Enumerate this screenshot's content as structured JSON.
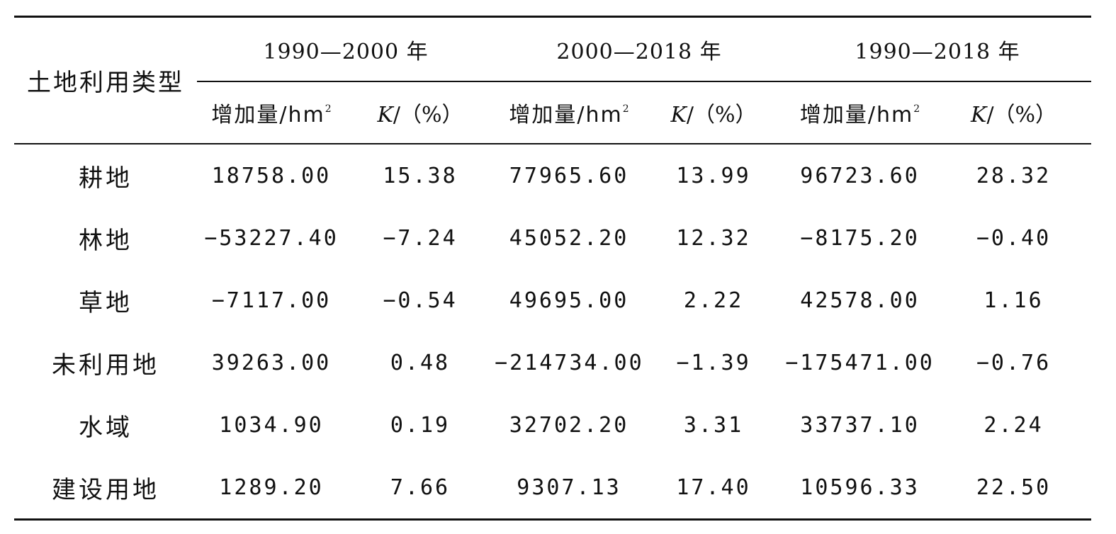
{
  "table": {
    "row_header": "土地利用类型",
    "periods": [
      "1990—2000 年",
      "2000—2018 年",
      "1990—2018 年"
    ],
    "sub_headers": {
      "increase": "增加量/hm",
      "increase_sup": "2",
      "k_var": "K",
      "k_unit": "/（%）"
    },
    "rows": [
      {
        "type": "耕地",
        "values": [
          "18758.00",
          "15.38",
          "77965.60",
          "13.99",
          "96723.60",
          "28.32"
        ]
      },
      {
        "type": "林地",
        "values": [
          "−53227.40",
          "−7.24",
          "45052.20",
          "12.32",
          "−8175.20",
          "−0.40"
        ]
      },
      {
        "type": "草地",
        "values": [
          "−7117.00",
          "−0.54",
          "49695.00",
          "2.22",
          "42578.00",
          "1.16"
        ]
      },
      {
        "type": "未利用地",
        "values": [
          "39263.00",
          "0.48",
          "−214734.00",
          "−1.39",
          "−175471.00",
          "−0.76"
        ]
      },
      {
        "type": "水域",
        "values": [
          "1034.90",
          "0.19",
          "32702.20",
          "3.31",
          "33737.10",
          "2.24"
        ]
      },
      {
        "type": "建设用地",
        "values": [
          "1289.20",
          "7.66",
          "9307.13",
          "17.40",
          "10596.33",
          "22.50"
        ]
      }
    ]
  }
}
